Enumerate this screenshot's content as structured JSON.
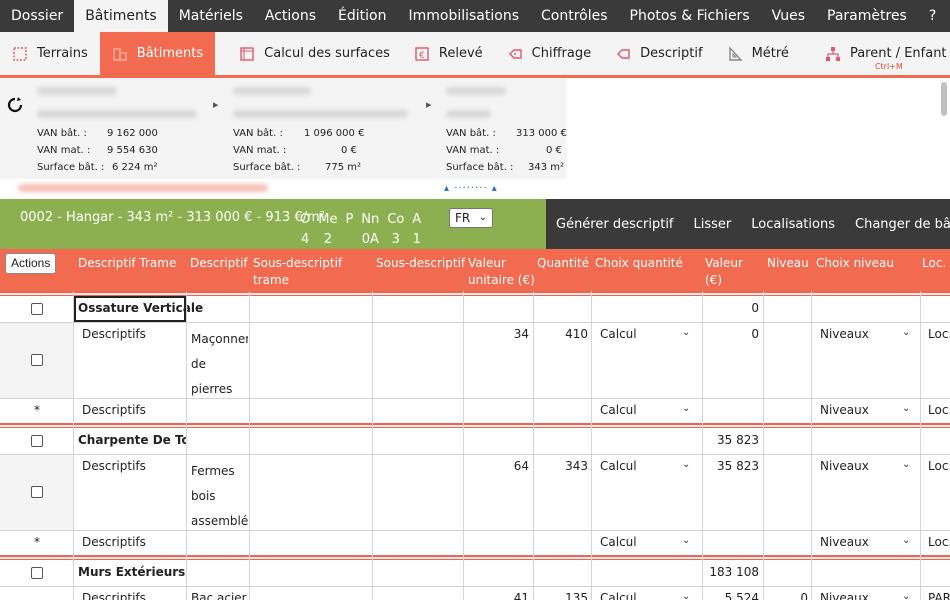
{
  "menu": [
    "Dossier",
    "Bâtiments",
    "Matériels",
    "Actions",
    "Édition",
    "Immobilisations",
    "Contrôles",
    "Photos & Fichiers",
    "Vues",
    "Paramètres",
    "?"
  ],
  "toolbar": {
    "terrains": "Terrains",
    "batiments": "Bâtiments",
    "calcul": "Calcul des surfaces",
    "releve": "Relevé",
    "chiffrage": "Chiffrage",
    "descriptif": "Descriptif",
    "metre": "Métré",
    "parent": "Parent / Enfant",
    "parent_shortcut": "Ctrl+M",
    "accent": "#f26a4f"
  },
  "cards": [
    {
      "van_bat_label": "VAN bât. :",
      "van_bat": "9 162 000",
      "van_mat_label": "VAN mat. :",
      "van_mat": "9 554 630",
      "surface_label": "Surface bât. :",
      "surface": "6 224 m²"
    },
    {
      "van_bat_label": "VAN bât. :",
      "van_bat": "1 096 000 €",
      "van_mat_label": "VAN mat. :",
      "van_mat": "0 €",
      "surface_label": "Surface bât. :",
      "surface": "775 m²"
    },
    {
      "van_bat_label": "VAN bât. :",
      "van_bat": "313 000 €",
      "van_mat_label": "VAN mat. :",
      "van_mat": "0 €",
      "surface_label": "Surface bât. :",
      "surface": "343 m²"
    }
  ],
  "status": {
    "title": "0002 - Hangar - 343 m² - 313 000 € - 913 €/m²",
    "flags": [
      {
        "top": "O",
        "bottom": "4"
      },
      {
        "top": "Me",
        "bottom": "2"
      },
      {
        "top": "P",
        "bottom": ""
      },
      {
        "top": "Nn",
        "bottom": "0A"
      },
      {
        "top": "Co",
        "bottom": "3"
      },
      {
        "top": "A",
        "bottom": "1"
      }
    ],
    "language": "FR",
    "green": "#8cb04f"
  },
  "actions": [
    "Générer descriptif",
    "Lisser",
    "Localisations",
    "Changer de bâtiment"
  ],
  "table": {
    "actions_button": "Actions",
    "headers": {
      "desc_trame": "Descriptif Trame",
      "descriptif": "Descriptif",
      "sous_trame": "Sous-descriptif trame",
      "sous": "Sous-descriptif",
      "valeur_unitaire": "Valeur unitaire (€)",
      "quantite": "Quantité",
      "choix_quantite": "Choix quantité",
      "valeur": "Valeur (€)",
      "niveau": "Niveau",
      "choix_niveau": "Choix niveau",
      "loc": "Loc."
    },
    "groups": [
      {
        "name": "Ossature Verticale",
        "total": "0",
        "row": {
          "trame": "Descriptifs",
          "descriptif_lines": [
            "Maçonner",
            "de",
            "pierres"
          ],
          "unit": "34",
          "qty": "410",
          "choix": "Calcul",
          "valeur": "0",
          "niveau": "",
          "choix_niveau": "Niveaux",
          "loc": "Loc."
        },
        "new_row": {
          "marker": "*",
          "trame": "Descriptifs",
          "choix": "Calcul",
          "choix_niveau": "Niveaux",
          "loc": "Loc."
        }
      },
      {
        "name": "Charpente De Toitu",
        "total": "35 823",
        "row": {
          "trame": "Descriptifs",
          "descriptif_lines": [
            "Fermes",
            "bois",
            "assemblée"
          ],
          "unit": "64",
          "qty": "343",
          "choix": "Calcul",
          "valeur": "35 823",
          "niveau": "",
          "choix_niveau": "Niveaux",
          "loc": "Loc."
        },
        "new_row": {
          "marker": "*",
          "trame": "Descriptifs",
          "choix": "Calcul",
          "choix_niveau": "Niveaux",
          "loc": "Loc."
        }
      },
      {
        "name": "Murs Extérieurs",
        "total": "183 108",
        "row": {
          "trame": "Descriptifs",
          "descriptif_lines": [
            "Bac acier"
          ],
          "unit": "41",
          "qty": "135",
          "choix": "Calcul",
          "valeur": "5 524",
          "niveau": "0",
          "choix_niveau": "Niveaux",
          "loc": "PAR"
        }
      }
    ]
  }
}
